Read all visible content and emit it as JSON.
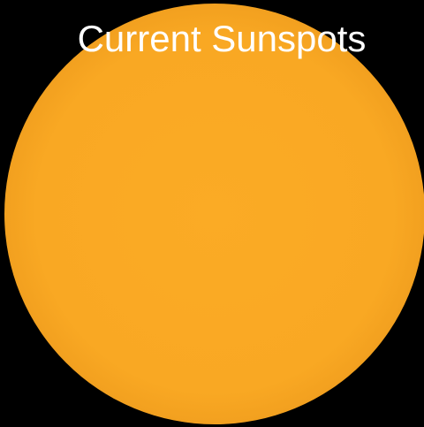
{
  "title": "Current Sunspots"
}
